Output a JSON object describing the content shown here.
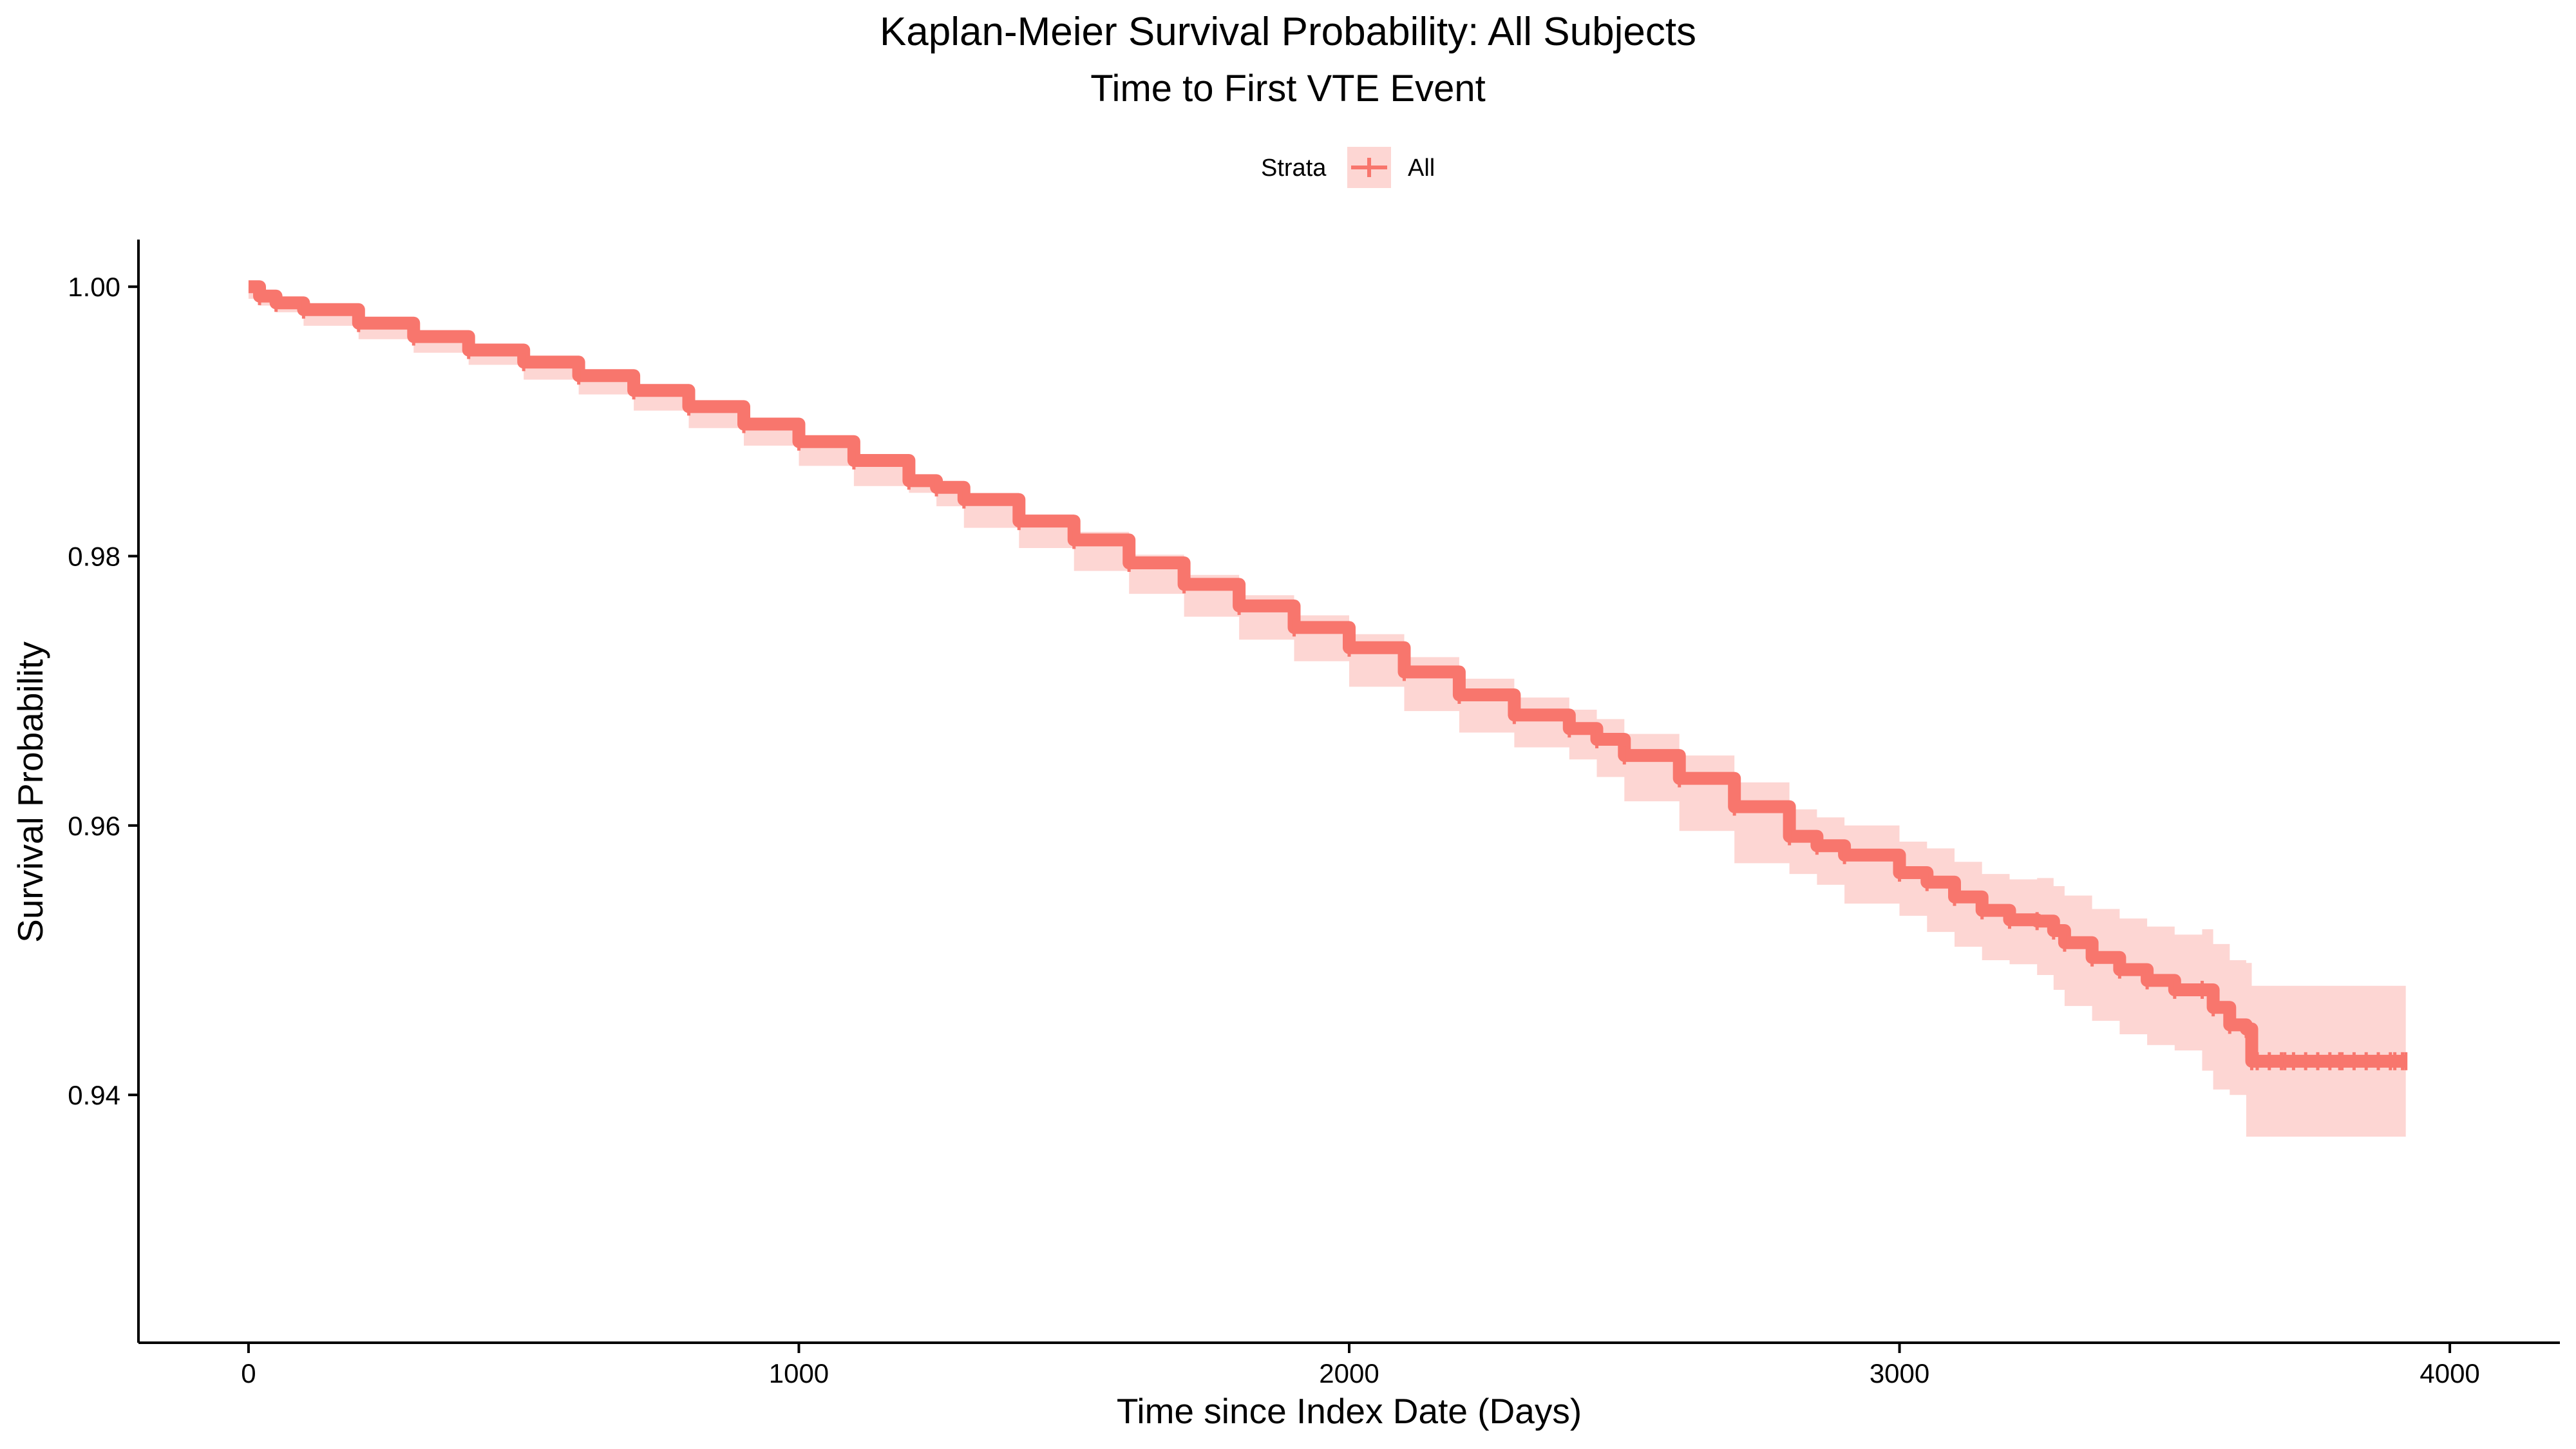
{
  "chart_data": {
    "type": "line",
    "title": "Kaplan-Meier Survival Probability: All Subjects",
    "subtitle": "Time to First VTE Event",
    "xlabel": "Time since Index Date (Days)",
    "ylabel": "Survival Probability",
    "xlim": [
      -200,
      4200
    ],
    "ylim": [
      0.9216,
      1.0035
    ],
    "x_ticks": [
      0,
      1000,
      2000,
      3000,
      4000
    ],
    "x_tick_labels": [
      "0",
      "1000",
      "2000",
      "3000",
      "4000"
    ],
    "y_ticks": [
      0.94,
      0.96,
      0.98,
      1.0
    ],
    "y_tick_labels": [
      "0.94",
      "0.96",
      "0.98",
      "1.00"
    ],
    "grid": false,
    "legend": {
      "title": "Strata",
      "position": "top",
      "entries": [
        "All"
      ]
    },
    "colors": {
      "line": "#F8766D",
      "band": "#F8766D",
      "band_opacity": 0.3,
      "axis": "#000000"
    },
    "series": [
      {
        "name": "All",
        "x": [
          0,
          20,
          50,
          100,
          200,
          300,
          400,
          500,
          600,
          700,
          800,
          900,
          1000,
          1100,
          1200,
          1250,
          1300,
          1400,
          1500,
          1600,
          1700,
          1800,
          1900,
          2000,
          2100,
          2200,
          2300,
          2400,
          2450,
          2500,
          2600,
          2700,
          2800,
          2850,
          2900,
          3000,
          3050,
          3100,
          3150,
          3200,
          3250,
          3280,
          3300,
          3350,
          3400,
          3450,
          3500,
          3550,
          3570,
          3600,
          3630,
          3640,
          3700,
          3800,
          3900,
          3920
        ],
        "y": [
          1.0,
          0.9993,
          0.9988,
          0.9983,
          0.9973,
          0.9963,
          0.9953,
          0.9944,
          0.9934,
          0.9923,
          0.9911,
          0.9898,
          0.9885,
          0.9871,
          0.9856,
          0.9851,
          0.9842,
          0.9826,
          0.9812,
          0.9795,
          0.9779,
          0.9763,
          0.9747,
          0.9732,
          0.9714,
          0.9697,
          0.9682,
          0.9672,
          0.9664,
          0.9652,
          0.9635,
          0.9614,
          0.9592,
          0.9585,
          0.9578,
          0.9565,
          0.9558,
          0.9547,
          0.9537,
          0.953,
          0.9529,
          0.9522,
          0.9513,
          0.9502,
          0.9493,
          0.9485,
          0.9478,
          0.9478,
          0.9465,
          0.9452,
          0.9449,
          0.9425,
          0.9425,
          0.9425,
          0.9425,
          0.9425
        ],
        "lower": [
          1.0,
          0.9991,
          0.9986,
          0.9981,
          0.9971,
          0.9961,
          0.9951,
          0.9942,
          0.9931,
          0.992,
          0.9908,
          0.9895,
          0.9882,
          0.9867,
          0.9852,
          0.9847,
          0.9837,
          0.9821,
          0.9806,
          0.9789,
          0.9772,
          0.9755,
          0.9738,
          0.9722,
          0.9703,
          0.9685,
          0.9669,
          0.9658,
          0.9649,
          0.9636,
          0.9618,
          0.9596,
          0.9572,
          0.9564,
          0.9556,
          0.9542,
          0.9533,
          0.9521,
          0.951,
          0.95,
          0.9497,
          0.9489,
          0.9478,
          0.9466,
          0.9455,
          0.9445,
          0.9437,
          0.9433,
          0.9418,
          0.9404,
          0.94,
          0.9369,
          0.9369,
          0.9369,
          0.9369,
          0.9369
        ],
        "upper": [
          1.0,
          0.9995,
          0.999,
          0.9985,
          0.9975,
          0.9965,
          0.9955,
          0.9946,
          0.9937,
          0.9926,
          0.9914,
          0.9901,
          0.9888,
          0.9875,
          0.986,
          0.9855,
          0.9847,
          0.9831,
          0.9818,
          0.9801,
          0.9786,
          0.9771,
          0.9756,
          0.9742,
          0.9725,
          0.9709,
          0.9695,
          0.9686,
          0.9679,
          0.9668,
          0.9652,
          0.9632,
          0.9612,
          0.9606,
          0.96,
          0.9588,
          0.9583,
          0.9573,
          0.9564,
          0.956,
          0.9561,
          0.9555,
          0.9548,
          0.9538,
          0.9531,
          0.9525,
          0.9519,
          0.9523,
          0.9512,
          0.95,
          0.9498,
          0.9481,
          0.9481,
          0.9481,
          0.9481,
          0.9481
        ]
      }
    ]
  }
}
